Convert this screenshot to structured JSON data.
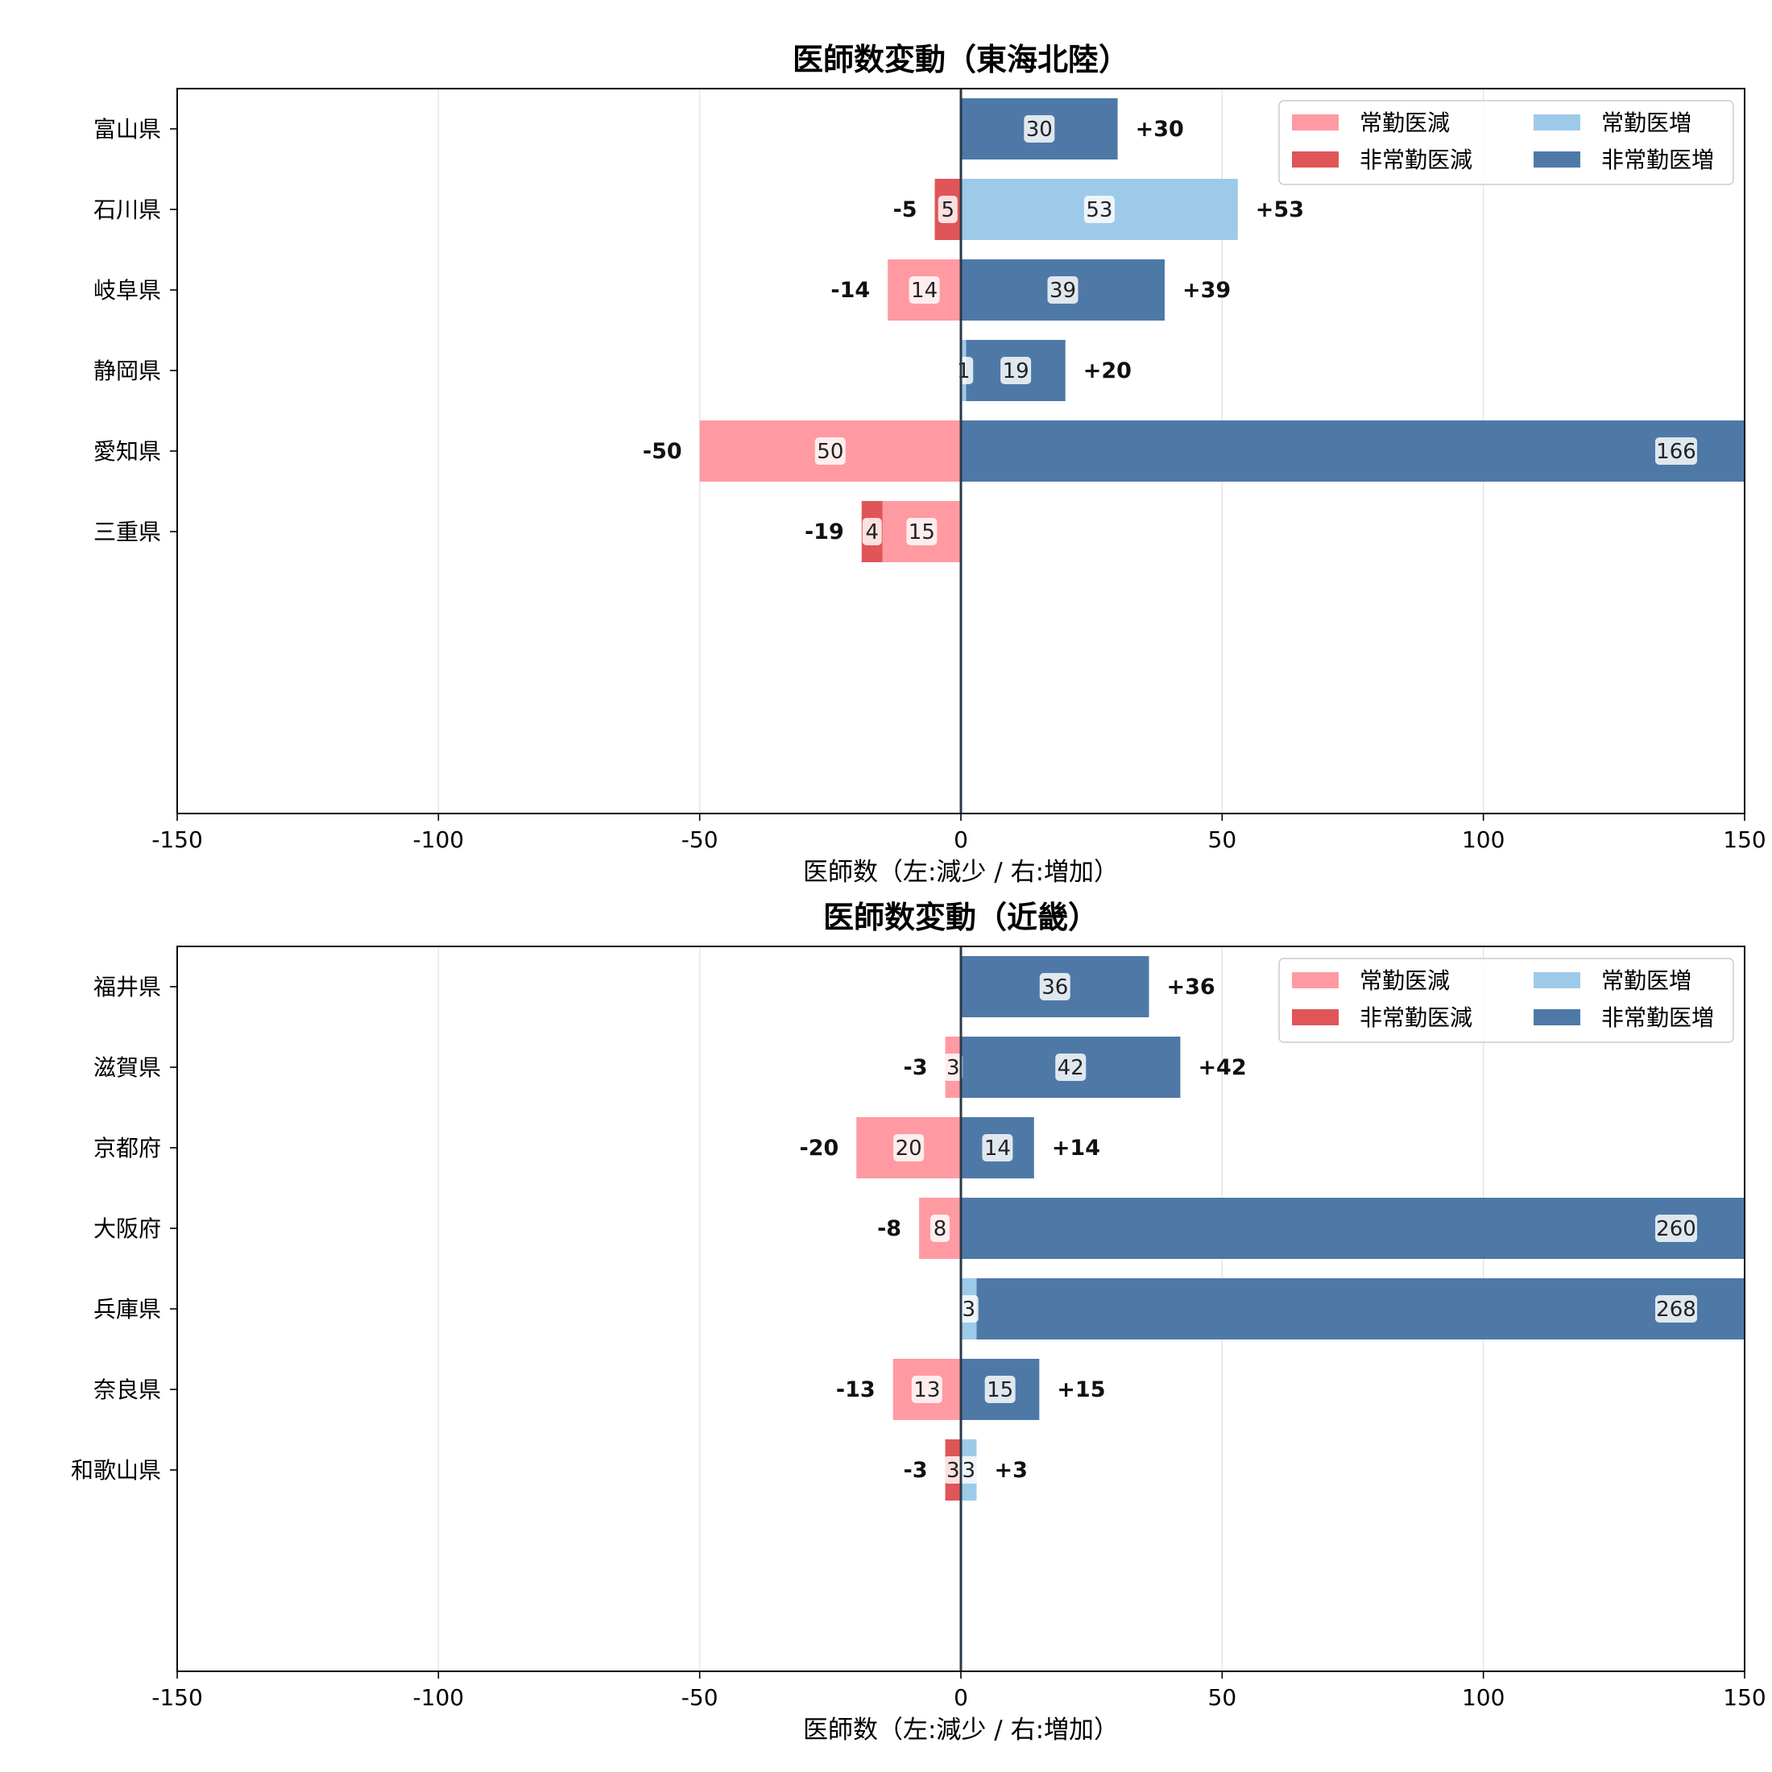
{
  "colors": {
    "regular_decrease": "#ff9aa2",
    "nonregular_decrease": "#e05558",
    "regular_increase": "#9ecae9",
    "nonregular_increase": "#4e79a7",
    "zero_line": "#2b3a4a",
    "grid": "#e6e6e6"
  },
  "legend_labels": [
    "常勤医減",
    "非常勤医減",
    "常勤医増",
    "非常勤医増"
  ],
  "chart_data": [
    {
      "type": "bar",
      "orientation": "horizontal-diverging",
      "title": "医師数変動（東海北陸）",
      "xlabel": "医師数（左:減少 / 右:増加）",
      "xlim": [
        -150,
        150
      ],
      "xticks": [
        -150,
        -100,
        -50,
        0,
        50,
        100,
        150
      ],
      "slots": 9,
      "grid": "vertical",
      "legend_position": "top-right",
      "categories": [
        "富山県",
        "石川県",
        "岐阜県",
        "静岡県",
        "愛知県",
        "三重県"
      ],
      "series": [
        {
          "name": "常勤医減",
          "values": [
            0,
            0,
            14,
            0,
            50,
            15
          ]
        },
        {
          "name": "非常勤医減",
          "values": [
            0,
            5,
            0,
            0,
            0,
            4
          ]
        },
        {
          "name": "常勤医増",
          "values": [
            0,
            53,
            0,
            1,
            0,
            0
          ]
        },
        {
          "name": "非常勤医増",
          "values": [
            30,
            0,
            39,
            19,
            166,
            0
          ]
        }
      ],
      "totals_decrease": [
        "",
        "-5",
        "-14",
        "",
        "-50",
        "-19"
      ],
      "totals_increase": [
        "+30",
        "+53",
        "+39",
        "+20",
        "",
        ""
      ]
    },
    {
      "type": "bar",
      "orientation": "horizontal-diverging",
      "title": "医師数変動（近畿）",
      "xlabel": "医師数（左:減少 / 右:増加）",
      "xlim": [
        -150,
        150
      ],
      "xticks": [
        -150,
        -100,
        -50,
        0,
        50,
        100,
        150
      ],
      "slots": 9,
      "grid": "vertical",
      "legend_position": "top-right",
      "categories": [
        "福井県",
        "滋賀県",
        "京都府",
        "大阪府",
        "兵庫県",
        "奈良県",
        "和歌山県"
      ],
      "series": [
        {
          "name": "常勤医減",
          "values": [
            0,
            3,
            20,
            8,
            0,
            13,
            0
          ]
        },
        {
          "name": "非常勤医減",
          "values": [
            0,
            0,
            0,
            0,
            0,
            0,
            3
          ]
        },
        {
          "name": "常勤医増",
          "values": [
            0,
            0,
            0,
            0,
            3,
            0,
            3
          ]
        },
        {
          "name": "非常勤医増",
          "values": [
            36,
            42,
            14,
            260,
            268,
            15,
            0
          ]
        }
      ],
      "totals_decrease": [
        "",
        "-3",
        "-20",
        "-8",
        "",
        "-13",
        "-3"
      ],
      "totals_increase": [
        "+36",
        "+42",
        "+14",
        "",
        "",
        "+15",
        "+3"
      ]
    }
  ]
}
